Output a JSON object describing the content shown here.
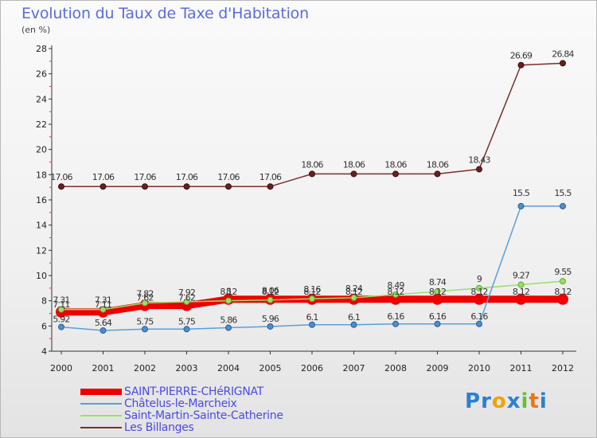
{
  "chart_data": {
    "type": "line",
    "title": "Evolution du Taux de Taxe d'Habitation",
    "subtitle": "(en %)",
    "categories": [
      "2000",
      "2001",
      "2002",
      "2003",
      "2004",
      "2005",
      "2006",
      "2007",
      "2008",
      "2009",
      "2010",
      "2011",
      "2012"
    ],
    "ylim": [
      4,
      28
    ],
    "yticks": [
      "4",
      "6",
      "8",
      "10",
      "12",
      "14",
      "16",
      "18",
      "20",
      "22",
      "24",
      "26",
      "28"
    ],
    "grid": false,
    "legend_position": "bottom-left",
    "series": [
      {
        "name": "SAINT-PIERRE-CHéRIGNAT",
        "color": "#ee0000",
        "values": [
          7.11,
          7.11,
          7.62,
          7.62,
          8.12,
          8.12,
          8.12,
          8.12,
          8.12,
          8.12,
          8.12,
          8.12,
          8.12
        ],
        "labels": [
          "7.11",
          "7.11",
          "7.62",
          "7.62",
          "8.12",
          "8.12",
          "8.12",
          "8.12",
          "8.12",
          "8.12",
          "8.12",
          "8.12",
          "8.12"
        ]
      },
      {
        "name": "Châtelus-le-Marcheix",
        "color": "#5a9fd8",
        "values": [
          5.92,
          5.64,
          5.75,
          5.75,
          5.86,
          5.96,
          6.1,
          6.1,
          6.16,
          6.16,
          6.16,
          15.5,
          15.5
        ],
        "labels": [
          "5.92",
          "5.64",
          "5.75",
          "5.75",
          "5.86",
          "5.96",
          "6.1",
          "6.1",
          "6.16",
          "6.16",
          "6.16",
          "15.5",
          "15.5"
        ]
      },
      {
        "name": "Saint-Martin-Sainte-Catherine",
        "color": "#99e066",
        "values": [
          7.31,
          7.31,
          7.82,
          7.92,
          8,
          8.06,
          8.16,
          8.24,
          8.49,
          8.74,
          9,
          9.27,
          9.55
        ],
        "labels": [
          "7.31",
          "7.31",
          "7.82",
          "7.92",
          "8",
          "8.06",
          "8.16",
          "8.24",
          "8.49",
          "8.74",
          "9",
          "9.27",
          "9.55"
        ]
      },
      {
        "name": "Les Billanges",
        "color": "#7a2e2e",
        "values": [
          17.06,
          17.06,
          17.06,
          17.06,
          17.06,
          17.06,
          18.06,
          18.06,
          18.06,
          18.06,
          18.43,
          26.69,
          26.84
        ],
        "labels": [
          "17.06",
          "17.06",
          "17.06",
          "17.06",
          "17.06",
          "17.06",
          "18.06",
          "18.06",
          "18.06",
          "18.06",
          "18.43",
          "26.69",
          "26.84"
        ]
      }
    ]
  },
  "logo": {
    "letters": [
      "P",
      "r",
      "o",
      "x",
      "i",
      "t",
      "i"
    ],
    "colors": [
      "#2a7fd4",
      "#2a7fd4",
      "#f2a200",
      "#2a7fd4",
      "#6abf2e",
      "#e8761a",
      "#2a7fd4"
    ]
  }
}
